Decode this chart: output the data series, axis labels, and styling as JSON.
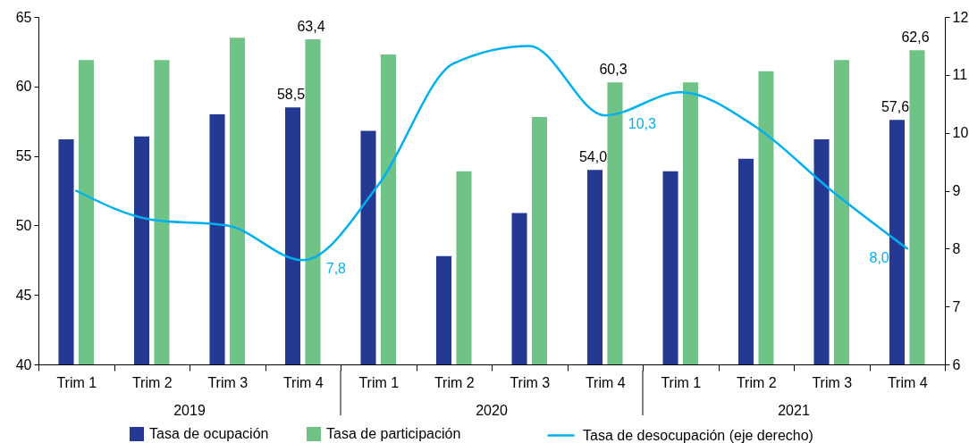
{
  "chart_data": {
    "type": "bar",
    "categories": [
      "Trim 1",
      "Trim 2",
      "Trim 3",
      "Trim 4",
      "Trim 1",
      "Trim 2",
      "Trim 3",
      "Trim 4",
      "Trim 1",
      "Trim 2",
      "Trim 3",
      "Trim 4"
    ],
    "annotations": [
      "2019",
      "2020",
      "2021"
    ],
    "series": [
      {
        "name": "Tasa de ocupación",
        "color": "#243a92",
        "values": [
          56.2,
          56.4,
          58.0,
          58.5,
          56.8,
          47.8,
          50.9,
          54.0,
          53.9,
          54.8,
          56.2,
          57.6
        ],
        "value_labels": [
          null,
          null,
          null,
          "58,5",
          null,
          null,
          null,
          "54,0",
          null,
          null,
          null,
          "57,6"
        ]
      },
      {
        "name": "Tasa de participación",
        "color": "#70c387",
        "values": [
          61.9,
          61.9,
          63.5,
          63.4,
          62.3,
          53.9,
          57.8,
          60.3,
          60.3,
          61.1,
          61.9,
          62.6
        ],
        "value_labels": [
          null,
          null,
          null,
          "63,4",
          null,
          null,
          null,
          "60,3",
          null,
          null,
          null,
          "62,6"
        ]
      },
      {
        "name": "Tasa de desocupación (eje derecho)",
        "type": "line",
        "axis": "y2",
        "color": "#00b0f0",
        "values": [
          9.0,
          8.5,
          8.4,
          7.8,
          9.1,
          11.2,
          11.5,
          10.3,
          10.7,
          10.1,
          9.0,
          8.0
        ],
        "value_labels": [
          null,
          null,
          null,
          "7,8",
          null,
          null,
          null,
          "10,3",
          null,
          null,
          null,
          "8,0"
        ]
      }
    ],
    "ylim": [
      40,
      65
    ],
    "yticks": [
      40,
      45,
      50,
      55,
      60,
      65
    ],
    "y2lim": [
      6,
      12
    ],
    "y2ticks": [
      6,
      7,
      8,
      9,
      10,
      11,
      12
    ],
    "legend": "bottom",
    "grid": false
  }
}
